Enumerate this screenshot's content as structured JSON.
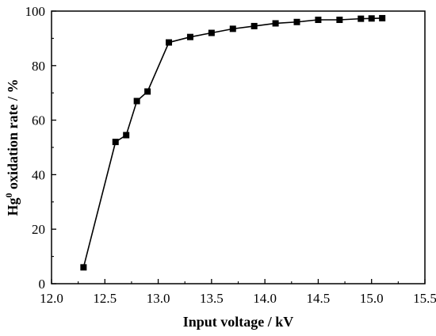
{
  "chart_data": {
    "type": "line",
    "xlabel": "Input voltage / kV",
    "ylabel_main": "Hg",
    "ylabel_sup": "0",
    "ylabel_rest": " oxidation rate / %",
    "xlim": [
      12.0,
      15.5
    ],
    "ylim": [
      0,
      100
    ],
    "xticks": [
      12.0,
      12.5,
      13.0,
      13.5,
      14.0,
      14.5,
      15.0,
      15.5
    ],
    "xtick_labels": [
      "12.0",
      "12.5",
      "13.0",
      "13.5",
      "14.0",
      "14.5",
      "15.0",
      "15.5"
    ],
    "yticks": [
      0,
      20,
      40,
      60,
      80,
      100
    ],
    "ytick_labels": [
      "0",
      "20",
      "40",
      "60",
      "80",
      "100"
    ],
    "grid": false,
    "marker": "square",
    "color": "#000000",
    "series": [
      {
        "x": [
          12.3,
          12.6,
          12.7,
          12.8,
          12.9,
          13.1,
          13.3,
          13.5,
          13.7,
          13.9,
          14.1,
          14.3,
          14.5,
          14.7,
          14.9,
          15.0,
          15.1
        ],
        "y": [
          6,
          52,
          54.5,
          67,
          70.5,
          88.5,
          90.5,
          92,
          93.5,
          94.5,
          95.5,
          96,
          96.8,
          96.8,
          97.2,
          97.3,
          97.4
        ]
      }
    ]
  }
}
